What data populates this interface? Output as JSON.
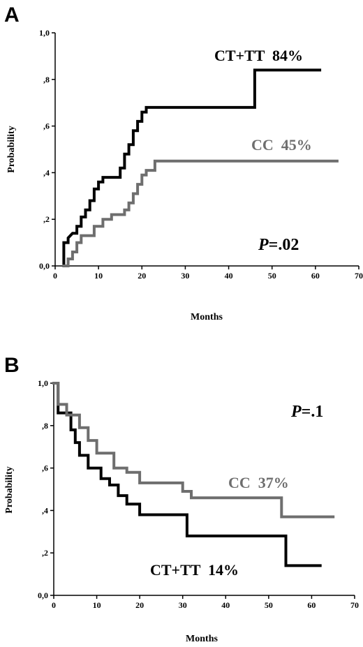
{
  "chart_data": [
    {
      "type": "line",
      "panel_label": "A",
      "xlabel": "Months",
      "ylabel": "Probability",
      "xlim": [
        0,
        70
      ],
      "ylim": [
        0,
        1
      ],
      "x_ticks": [
        "0",
        "10",
        "20",
        "30",
        "40",
        "50",
        "60",
        "70"
      ],
      "y_ticks": [
        "0,0",
        ",2",
        ",4",
        ",6",
        ",8",
        "1,0"
      ],
      "annotations": [
        {
          "text": "CT+TT  84%",
          "color": "#000000"
        },
        {
          "text": "CC  45%",
          "color": "#6e6e6e"
        },
        {
          "text": "P",
          "text2": "=.02"
        }
      ],
      "series": [
        {
          "name": "CT+TT",
          "color": "#000000",
          "x": [
            2,
            2,
            3,
            3,
            4,
            5,
            5,
            6,
            6,
            7,
            7,
            8,
            8,
            9,
            9,
            10,
            10,
            11,
            11,
            12,
            15,
            15,
            16,
            16,
            17,
            17,
            18,
            18,
            19,
            19,
            20,
            20,
            21,
            21,
            46,
            46,
            61
          ],
          "y": [
            0,
            0.1,
            0.1,
            0.12,
            0.14,
            0.14,
            0.17,
            0.17,
            0.21,
            0.21,
            0.24,
            0.24,
            0.28,
            0.28,
            0.33,
            0.33,
            0.36,
            0.36,
            0.38,
            0.38,
            0.38,
            0.42,
            0.42,
            0.48,
            0.48,
            0.52,
            0.52,
            0.58,
            0.58,
            0.62,
            0.62,
            0.66,
            0.66,
            0.68,
            0.68,
            0.84,
            0.84
          ]
        },
        {
          "name": "CC",
          "color": "#6e6e6e",
          "x": [
            2,
            3,
            3,
            4,
            4,
            5,
            5,
            6,
            6,
            9,
            9,
            11,
            11,
            13,
            13,
            16,
            16,
            17,
            17,
            18,
            18,
            19,
            19,
            20,
            20,
            21,
            21,
            23,
            23,
            65
          ],
          "y": [
            0,
            0,
            0.03,
            0.03,
            0.06,
            0.06,
            0.1,
            0.1,
            0.13,
            0.13,
            0.17,
            0.17,
            0.2,
            0.2,
            0.22,
            0.22,
            0.24,
            0.24,
            0.27,
            0.27,
            0.31,
            0.31,
            0.35,
            0.35,
            0.39,
            0.39,
            0.41,
            0.41,
            0.45,
            0.45
          ]
        }
      ]
    },
    {
      "type": "line",
      "panel_label": "B",
      "xlabel": "Months",
      "ylabel": "Probability",
      "xlim": [
        0,
        70
      ],
      "ylim": [
        0,
        1
      ],
      "x_ticks": [
        "0",
        "10",
        "20",
        "30",
        "40",
        "50",
        "60",
        "70"
      ],
      "y_ticks": [
        "0,0",
        ",2",
        ",4",
        ",6",
        ",8",
        "1,0"
      ],
      "annotations": [
        {
          "text": "CC  37%",
          "color": "#6e6e6e"
        },
        {
          "text": "CT+TT  14%",
          "color": "#000000"
        },
        {
          "text": "P",
          "text2": "=.1"
        }
      ],
      "series": [
        {
          "name": "CT+TT",
          "color": "#000000",
          "x": [
            0,
            1,
            1,
            4,
            4,
            5,
            5,
            6,
            6,
            8,
            8,
            11,
            11,
            13,
            13,
            15,
            15,
            17,
            17,
            20,
            20,
            31,
            31,
            54,
            54,
            62
          ],
          "y": [
            1.0,
            1.0,
            0.86,
            0.86,
            0.78,
            0.78,
            0.72,
            0.72,
            0.66,
            0.66,
            0.6,
            0.6,
            0.55,
            0.55,
            0.52,
            0.52,
            0.47,
            0.47,
            0.43,
            0.43,
            0.38,
            0.38,
            0.28,
            0.28,
            0.14,
            0.14
          ]
        },
        {
          "name": "CC",
          "color": "#6e6e6e",
          "x": [
            0,
            1,
            1,
            3,
            3,
            6,
            6,
            8,
            8,
            10,
            10,
            14,
            14,
            17,
            17,
            20,
            20,
            25,
            25,
            30,
            30,
            32,
            32,
            53,
            53,
            65
          ],
          "y": [
            1.0,
            1.0,
            0.9,
            0.9,
            0.85,
            0.85,
            0.79,
            0.79,
            0.73,
            0.73,
            0.67,
            0.67,
            0.6,
            0.6,
            0.58,
            0.58,
            0.53,
            0.53,
            0.53,
            0.53,
            0.49,
            0.49,
            0.46,
            0.46,
            0.37,
            0.37
          ]
        }
      ]
    }
  ]
}
